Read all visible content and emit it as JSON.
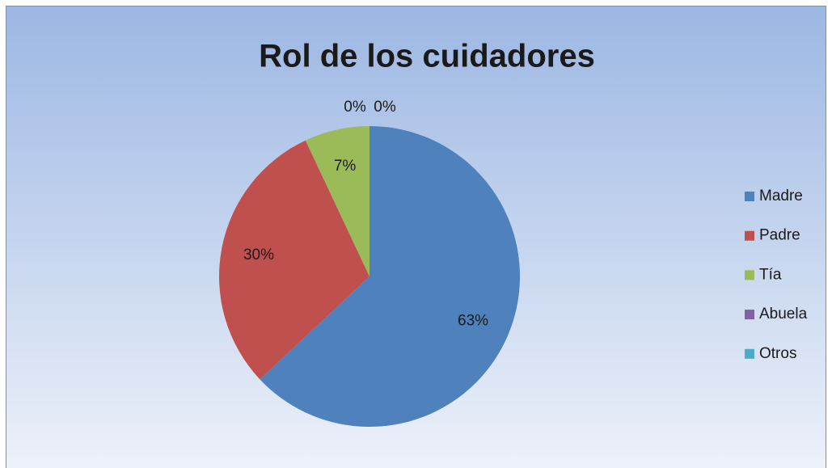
{
  "chart_data": {
    "type": "pie",
    "title": "Rol de los cuidadores",
    "categories": [
      "Madre",
      "Padre",
      "Tía",
      "Abuela",
      "Otros"
    ],
    "values": [
      63,
      30,
      7,
      0,
      0
    ],
    "value_labels": [
      "63%",
      "30%",
      "7%",
      "0%",
      "0%"
    ],
    "colors": [
      "#4f81bd",
      "#c0504d",
      "#9bbb59",
      "#8064a2",
      "#4bacc6"
    ],
    "legend": "right"
  }
}
